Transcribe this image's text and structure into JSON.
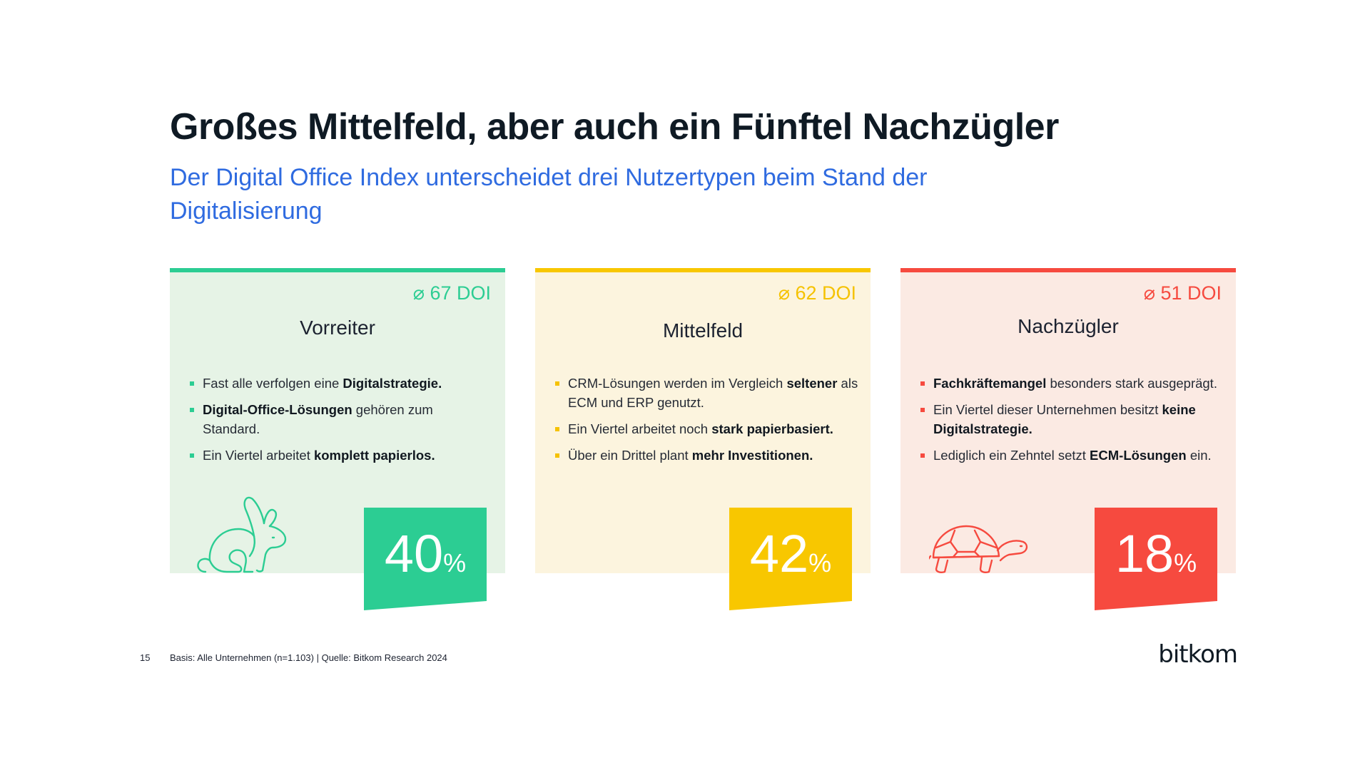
{
  "title": "Großes Mittelfeld, aber auch ein Fünftel Nachzügler",
  "subtitle": "Der Digital Office Index unterscheidet drei Nutzertypen beim Stand der Digitalisierung",
  "colors": {
    "green": "#2ccd93",
    "yellow": "#f8c700",
    "red": "#f64a3f",
    "subtitle_blue": "#2f6be0"
  },
  "cards": [
    {
      "doi": "⌀ 67 DOI",
      "title": "Vorreiter",
      "icon": "rabbit-icon",
      "bullets": [
        [
          {
            "t": "Fast alle verfolgen eine "
          },
          {
            "t": "Digitalstrategie.",
            "b": true
          }
        ],
        [
          {
            "t": "Digital-Office-Lösungen",
            "b": true
          },
          {
            "t": " gehören zum Standard."
          }
        ],
        [
          {
            "t": "Ein Viertel arbeitet "
          },
          {
            "t": "komplett papierlos.",
            "b": true
          }
        ]
      ],
      "percent": "40",
      "percent_sign": "%"
    },
    {
      "doi": "⌀ 62 DOI",
      "title": "Mittelfeld",
      "icon": "",
      "bullets": [
        [
          {
            "t": "CRM-Lösungen werden im Vergleich "
          },
          {
            "t": "seltener",
            "b": true
          },
          {
            "t": " als ECM und ERP genutzt."
          }
        ],
        [
          {
            "t": "Ein Viertel arbeitet noch "
          },
          {
            "t": "stark papierbasiert.",
            "b": true
          }
        ],
        [
          {
            "t": "Über ein Drittel plant "
          },
          {
            "t": "mehr Investitionen.",
            "b": true
          }
        ]
      ],
      "percent": "42",
      "percent_sign": "%"
    },
    {
      "doi": "⌀ 51 DOI",
      "title": "Nachzügler",
      "icon": "turtle-icon",
      "bullets": [
        [
          {
            "t": "Fachkräftemangel",
            "b": true
          },
          {
            "t": " besonders stark ausgeprägt."
          }
        ],
        [
          {
            "t": "Ein Viertel dieser Unternehmen besitzt "
          },
          {
            "t": "keine Digitalstrategie.",
            "b": true
          }
        ],
        [
          {
            "t": "Lediglich ein Zehntel setzt "
          },
          {
            "t": "ECM-Lösungen",
            "b": true
          },
          {
            "t": " ein."
          }
        ]
      ],
      "percent": "18",
      "percent_sign": "%"
    }
  ],
  "footer": {
    "page_number": "15",
    "basis": "Basis: Alle Unternehmen (n=1.103) | Quelle: Bitkom Research 2024",
    "logo_text": "bitkom"
  }
}
